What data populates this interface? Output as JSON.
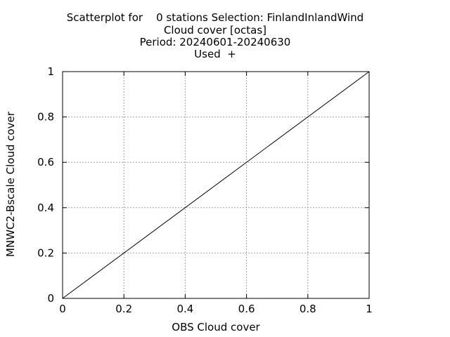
{
  "chart_data": {
    "type": "scatter",
    "title_lines": [
      "Scatterplot for    0 stations Selection: FinlandInlandWind",
      "Cloud cover [octas]",
      "Period: 20240601-20240630",
      "Used  +"
    ],
    "xlabel": "OBS Cloud cover",
    "ylabel": "MNWC2-Bscale Cloud cover",
    "xlim": [
      0,
      1
    ],
    "ylim": [
      0,
      1
    ],
    "xticks": [
      0,
      0.2,
      0.4,
      0.6,
      0.8,
      1
    ],
    "yticks": [
      0,
      0.2,
      0.4,
      0.6,
      0.8,
      1
    ],
    "xtick_labels": [
      "0",
      "0.2",
      "0.4",
      "0.6",
      "0.8",
      "1"
    ],
    "ytick_labels": [
      "0",
      "0.2",
      "0.4",
      "0.6",
      "0.8",
      "1"
    ],
    "grid": true,
    "reference_line": {
      "x": [
        0,
        1
      ],
      "y": [
        0,
        1
      ]
    },
    "points": []
  }
}
